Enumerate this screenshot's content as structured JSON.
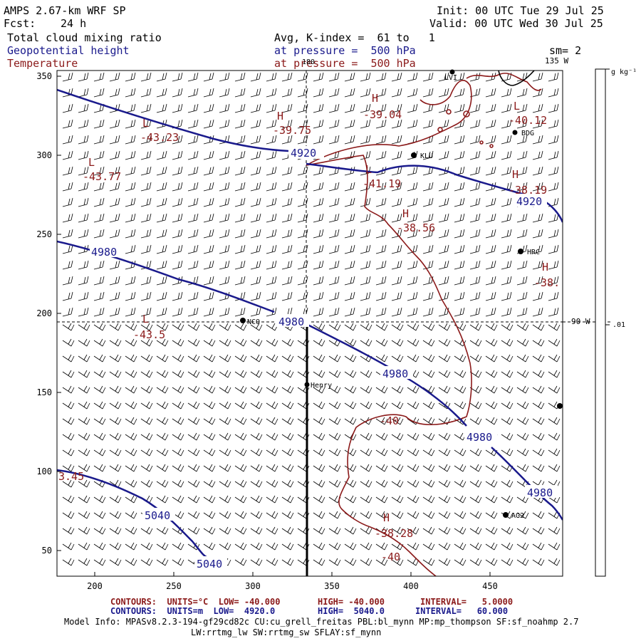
{
  "header": {
    "model": "AMPS 2.67-km WRF SP",
    "fcst_label": "Fcst:",
    "fcst_value": "24 h",
    "init": "Init: 00 UTC Tue 29 Jul 25",
    "valid": "Valid: 00 UTC Wed 30 Jul 25",
    "field1": "Total cloud mixing ratio",
    "field2": "Geopotential height",
    "field3": "Temperature",
    "avg": "Avg, K-index =  61 to   1",
    "pressure1": "at pressure =  500 hPa",
    "pressure2": "at pressure =  500 hPa",
    "sm": "sm= 2"
  },
  "map": {
    "y_ticks": [
      "350",
      "300",
      "250",
      "200",
      "150",
      "100",
      "50"
    ],
    "x_ticks": [
      "200",
      "250",
      "300",
      "350",
      "400",
      "450"
    ],
    "meridian_top": "180",
    "meridian_135": "135 W",
    "meridian_90": "90 W",
    "colorbar_unit": "g kg⁻¹",
    "colorbar_value": ".01",
    "stations": {
      "henry": "Henry",
      "nco": "NCO",
      "lvi": "LVI",
      "bdg": "BDG",
      "klu": "KLU",
      "hrc": "HRC",
      "ag2": "AG2"
    },
    "height_labels": [
      "4920",
      "4920",
      "4980",
      "4980",
      "4980",
      "4980",
      "4980",
      "5040",
      "5040"
    ],
    "temp_labels": [
      "-43.23",
      "-43.77",
      "-43.5",
      "-39.75",
      "-39.04",
      "-40.12",
      "-41.19",
      "-38.19",
      "-38.56",
      "-38.",
      "-40",
      "-40",
      "-38.28",
      "3.45"
    ],
    "hl_labels": {
      "L": "L",
      "H": "H"
    }
  },
  "footer": {
    "t_contours": "CONTOURS:  UNITS=°C  LOW= -40.000",
    "t_high": "HIGH= -40.000",
    "t_interval": "INTERVAL=   5.0000",
    "h_contours": "CONTOURS:  UNITS=m  LOW=  4920.0",
    "h_high": "HIGH=  5040.0",
    "h_interval": "INTERVAL=   60.000",
    "info1": "Model Info: MPASv8.2.3-194-gf29cd82c CU:cu_grell_freitas PBL:bl_mynn MP:mp_thompson SF:sf_noahmp 2.7",
    "info2": "LW:rrtmg_lw SW:rrtmg_sw SFLAY:sf_mynn"
  },
  "colors": {
    "height": "#1a1a8c",
    "temperature": "#8b1a1a",
    "axes": "#000000"
  }
}
